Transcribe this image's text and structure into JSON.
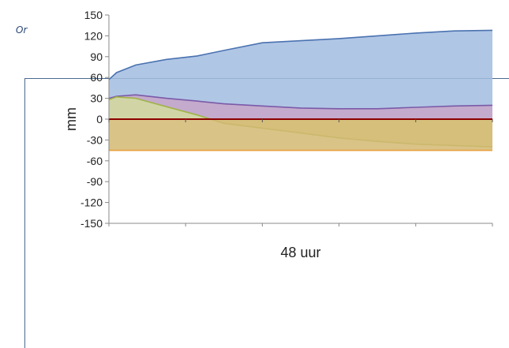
{
  "overlay": {
    "corner_text": "Or"
  },
  "chart_data": {
    "type": "area",
    "title": "",
    "xlabel": "48 uur",
    "ylabel": "mm",
    "ylim": [
      -150,
      150
    ],
    "yticks": [
      150,
      120,
      90,
      60,
      30,
      0,
      -30,
      -60,
      -90,
      -120,
      -150
    ],
    "x_ticks_labeled": false,
    "grid": false,
    "legend": "none",
    "x": [
      0,
      0.02,
      0.07,
      0.15,
      0.23,
      0.3,
      0.4,
      0.5,
      0.6,
      0.7,
      0.8,
      0.9,
      1.0
    ],
    "series": [
      {
        "color": "#a2bce0",
        "line_color": "#4a72b0",
        "values": [
          57,
          67,
          78,
          86,
          91,
          99,
          110,
          113,
          116,
          120,
          124,
          127,
          128
        ]
      },
      {
        "color": "#c8a4c8",
        "line_color": "#7a5aa8",
        "values": [
          30,
          33,
          35,
          30,
          26,
          22,
          19,
          16,
          15,
          15,
          17,
          19,
          20
        ]
      },
      {
        "color": "#d3dd9f",
        "line_color": "#a0b44a",
        "values": [
          28,
          32,
          30,
          18,
          6,
          -6,
          -13,
          -20,
          -27,
          -32,
          -36,
          -38,
          -40
        ]
      },
      {
        "color": "#d4b872",
        "line_color": "#e8a040",
        "values": [
          -45,
          -45,
          -45,
          -45,
          -45,
          -45,
          -45,
          -45,
          -45,
          -45,
          -45,
          -45,
          -45
        ]
      }
    ],
    "zero_line_color": "#8b0000"
  }
}
